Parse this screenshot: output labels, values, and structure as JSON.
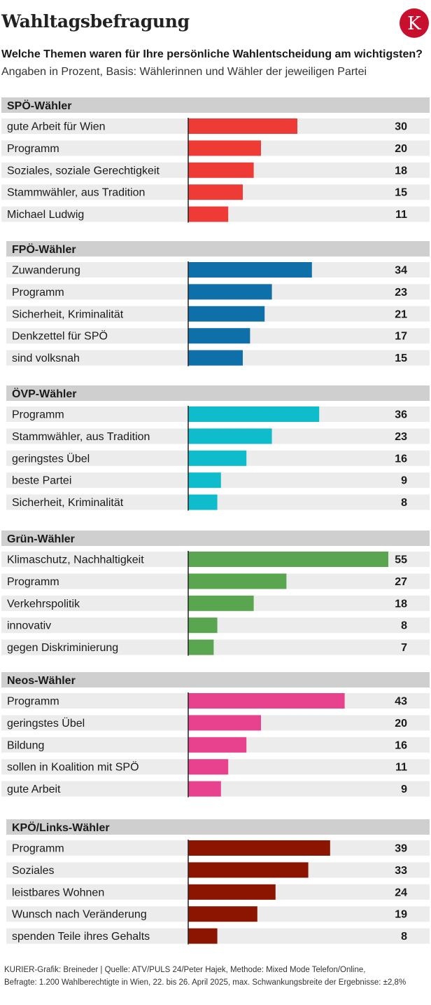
{
  "header": {
    "title": "Wahltagsbefragung",
    "logo_letter": "K",
    "subtitle": "Welche Themen waren für Ihre persönliche Wahlentscheidung am wichtigsten?",
    "basis": "Angaben in Prozent, Basis: Wählerinnen und Wähler der jeweiligen Partei"
  },
  "colors": {
    "logo": "#c8102e",
    "panel_header": "#cfcfcf",
    "row_bg": "#ececec"
  },
  "chart_data": {
    "type": "bar",
    "orientation": "horizontal",
    "unit": "Prozent",
    "xlim": [
      0,
      55
    ],
    "groups": [
      {
        "name": "SPÖ-Wähler",
        "color": "#ef3b36",
        "categories": [
          "gute Arbeit für Wien",
          "Programm",
          "Soziales, soziale Gerechtigkeit",
          "Stammwähler, aus Tradition",
          "Michael Ludwig"
        ],
        "values": [
          30,
          20,
          18,
          15,
          11
        ]
      },
      {
        "name": "FPÖ-Wähler",
        "color": "#0f6fa8",
        "categories": [
          "Zuwanderung",
          "Programm",
          "Sicherheit, Kriminalität",
          "Denkzettel für SPÖ",
          "sind volksnah"
        ],
        "values": [
          34,
          23,
          21,
          17,
          15
        ]
      },
      {
        "name": "ÖVP-Wähler",
        "color": "#0fbccc",
        "categories": [
          "Programm",
          "Stammwähler, aus Tradition",
          "geringstes Übel",
          "beste Partei",
          "Sicherheit, Kriminalität"
        ],
        "values": [
          36,
          23,
          16,
          9,
          8
        ]
      },
      {
        "name": "Grün-Wähler",
        "color": "#5aa650",
        "categories": [
          "Klimaschutz, Nachhaltigkeit",
          "Programm",
          "Verkehrspolitik",
          "innovativ",
          "gegen Diskriminierung"
        ],
        "values": [
          55,
          27,
          18,
          8,
          7
        ]
      },
      {
        "name": "Neos-Wähler",
        "color": "#e8428f",
        "categories": [
          "Programm",
          "geringstes Übel",
          "Bildung",
          "sollen in Koalition mit SPÖ",
          "gute Arbeit"
        ],
        "values": [
          43,
          20,
          16,
          11,
          9
        ]
      },
      {
        "name": "KPÖ/Links-Wähler",
        "color": "#8b1500",
        "categories": [
          "Programm",
          "Soziales",
          "leistbares Wohnen",
          "Wunsch nach Veränderung",
          "spenden Teile ihres Gehalts"
        ],
        "values": [
          39,
          33,
          24,
          19,
          8
        ]
      }
    ]
  },
  "footer": {
    "line1": "KURIER-Grafik: Breineder | Quelle: ATV/PULS 24/Peter Hajek, Methode: Mixed Mode Telefon/Online,",
    "line2": "Befragte: 1.200 Wahlberechtigte in Wien, 22. bis 26. April 2025, max. Schwankungsbreite der Ergebnisse: ±2,8%"
  }
}
